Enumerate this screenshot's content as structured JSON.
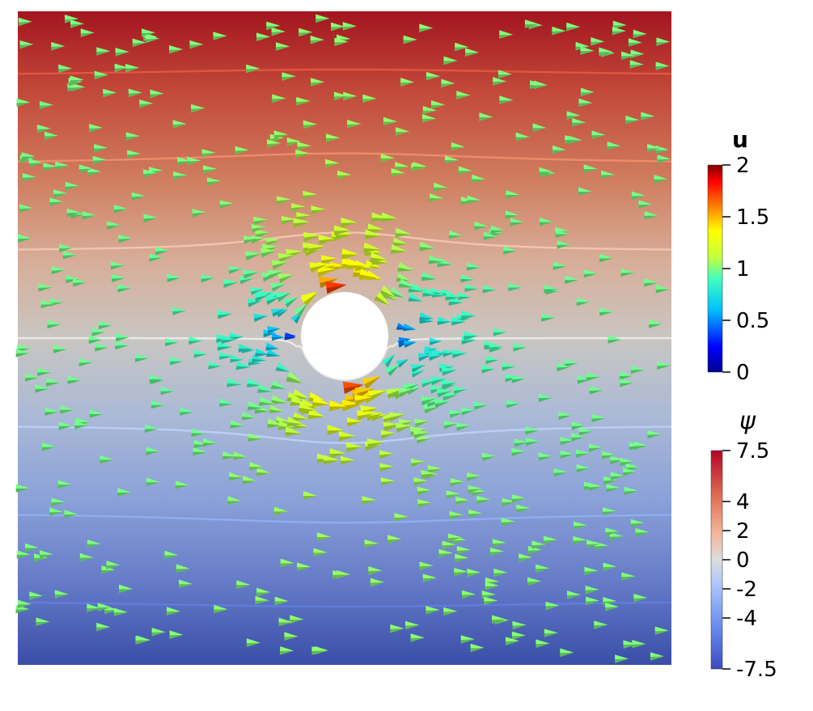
{
  "legend_u": {
    "title": "u",
    "ticks": [
      {
        "label": "2",
        "value": 2
      },
      {
        "label": "1.5",
        "value": 1.5
      },
      {
        "label": "1",
        "value": 1
      },
      {
        "label": "0.5",
        "value": 0.5
      },
      {
        "label": "0",
        "value": 0
      }
    ],
    "range": [
      0,
      2
    ],
    "colormap": [
      "#00008f",
      "#0000ff",
      "#00bfff",
      "#40ffbf",
      "#bfff40",
      "#ffff00",
      "#ff8000",
      "#ff0000",
      "#800000"
    ]
  },
  "legend_psi": {
    "title": "ψ",
    "ticks": [
      {
        "label": "7.5",
        "value": 7.5
      },
      {
        "label": "4",
        "value": 4
      },
      {
        "label": "2",
        "value": 2
      },
      {
        "label": "0",
        "value": 0
      },
      {
        "label": "-2",
        "value": -2
      },
      {
        "label": "-4",
        "value": -4
      },
      {
        "label": "-7.5",
        "value": -7.5
      }
    ],
    "range": [
      -7.5,
      7.5
    ],
    "colormap": [
      "#3b4cc0",
      "#6b8df0",
      "#a9c5fc",
      "#dddddd",
      "#f4b69c",
      "#de6a50",
      "#b40426"
    ]
  },
  "field": {
    "background_top": "#a0141f",
    "background_mid": "#c8c8c8",
    "background_bottom": "#3a4fa8",
    "contour_levels": [
      6,
      4,
      2,
      0,
      -2,
      -4,
      -6
    ]
  }
}
